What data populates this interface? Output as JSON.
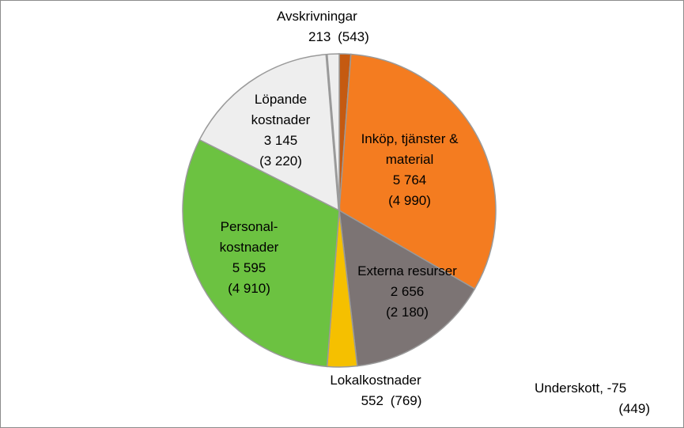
{
  "chart_data": {
    "type": "pie",
    "slices": [
      {
        "label": "Avskrivningar",
        "value": 213,
        "prev": "(543)",
        "color": "#c55a11",
        "display_value": "213"
      },
      {
        "label": "Inköp, tjänster & material",
        "value": 5764,
        "prev": "(4 990)",
        "color": "#f47c20",
        "display_value": "5 764"
      },
      {
        "label": "Externa resurser",
        "value": 2656,
        "prev": "(2 180)",
        "color": "#7c7474",
        "display_value": "2 656"
      },
      {
        "label": "Lokalkostnader",
        "value": 552,
        "prev": "(769)",
        "color": "#f5c000",
        "display_value": "552"
      },
      {
        "label": "Personal-kostnader",
        "value": 5595,
        "prev": "(4 910)",
        "color": "#6cc241",
        "display_value": "5 595"
      },
      {
        "label": "Löpande kostnader",
        "value": 3145,
        "prev": "(3 220)",
        "color": "#eeeeee",
        "display_value": "3 145"
      },
      {
        "label": "Underskott",
        "value": 75,
        "prev": "(449)",
        "color": "#9a9a9a",
        "display_value": "-75"
      }
    ]
  },
  "labels": {
    "avskr": {
      "name": "Avskrivningar",
      "value": "213",
      "prev": "(543)"
    },
    "inkop": {
      "line1": "Inköp, tjänster &",
      "line2": "material",
      "value": "5 764",
      "prev": "(4 990)"
    },
    "externa": {
      "name": "Externa resurser",
      "value": "2 656",
      "prev": "(2 180)"
    },
    "lokal": {
      "name": "Lokalkostnader",
      "value": "552",
      "prev": "(769)"
    },
    "personal": {
      "line1": "Personal-",
      "line2": "kostnader",
      "value": "5 595",
      "prev": "(4 910)"
    },
    "lopande": {
      "line1": "Löpande",
      "line2": "kostnader",
      "value": "3 145",
      "prev": "(3 220)"
    },
    "underskott": {
      "name": "Underskott, -75",
      "prev": "(449)"
    }
  }
}
